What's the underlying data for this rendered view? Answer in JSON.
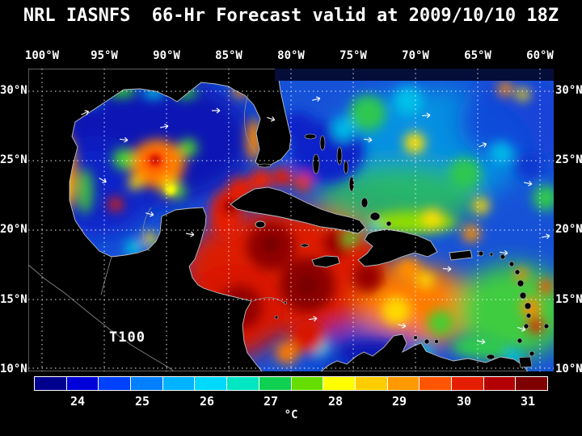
{
  "title": "NRL IASNFS  66-Hr Forecast valid at 2009/10/10 18Z",
  "map": {
    "top_axis": [
      "100°W",
      "95°W",
      "90°W",
      "85°W",
      "80°W",
      "75°W",
      "70°W",
      "65°W",
      "60°W"
    ],
    "left_axis": [
      "30°N",
      "25°N",
      "20°N",
      "15°N",
      "10°N"
    ],
    "right_axis": [
      "30°N",
      "25°N",
      "20°N",
      "15°N",
      "10°N"
    ],
    "overlay_label": "T100"
  },
  "colorbar": {
    "tick_labels": [
      "24",
      "25",
      "26",
      "27",
      "28",
      "29",
      "30",
      "31"
    ],
    "unit_label": "°C",
    "segment_colors": [
      "#00008f",
      "#0000d8",
      "#0040ff",
      "#0080ff",
      "#00b3ff",
      "#00d9ff",
      "#00e6c3",
      "#0fd050",
      "#66dd00",
      "#ffff00",
      "#ffcc00",
      "#ff9900",
      "#ff5500",
      "#e61e00",
      "#b30000",
      "#7f0000"
    ]
  },
  "chart_data": {
    "type": "heatmap",
    "title": "NRL IASNFS  66-Hr Forecast valid at 2009/10/10 18Z",
    "field_label": "T100",
    "unit": "°C",
    "x_axis": {
      "ticks": [
        "100°W",
        "95°W",
        "90°W",
        "85°W",
        "80°W",
        "75°W",
        "70°W",
        "65°W",
        "60°W"
      ],
      "range_deg_west": [
        100,
        60
      ]
    },
    "y_axis": {
      "ticks": [
        "30°N",
        "25°N",
        "20°N",
        "15°N",
        "10°N"
      ],
      "range_deg_north": [
        10,
        30
      ]
    },
    "colorbar": {
      "tick_values": [
        24,
        25,
        26,
        27,
        28,
        29,
        30,
        31
      ],
      "approx_value_range_c": [
        23.5,
        31.5
      ],
      "n_segments": 16,
      "position": "bottom"
    },
    "grid": true,
    "notes": "Temperature heatmap over Gulf of Mexico and Caribbean Sea; land masked black with gray coastlines; white dotted lat/lon grid every 5 degrees; white wind vector glyphs; cold (blue) Gulf with warm orange/red eddies; very warm (dark red) western Caribbean; cool blue upwelling off Venezuela; mixed green/cyan Atlantic"
  }
}
